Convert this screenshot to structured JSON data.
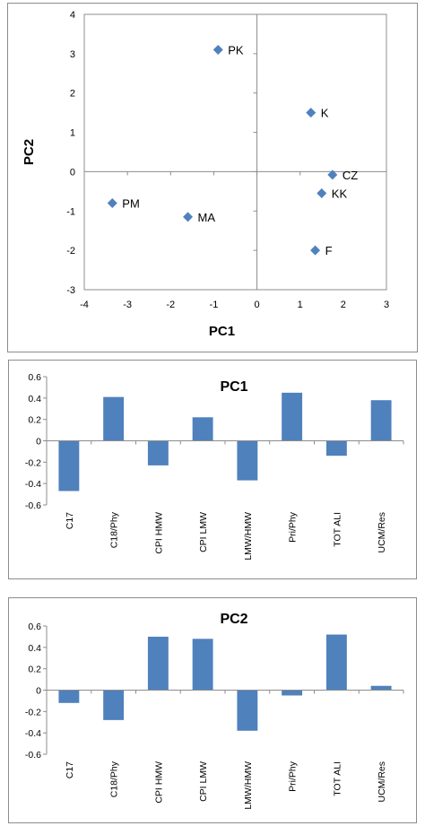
{
  "chart_data": [
    {
      "type": "scatter",
      "xlabel": "PC1",
      "ylabel": "PC2",
      "xlim": [
        -4,
        3
      ],
      "ylim": [
        -3,
        4
      ],
      "xticks": [
        "-4",
        "-3",
        "-2",
        "-1",
        "0",
        "1",
        "2",
        "3"
      ],
      "yticks": [
        "-3",
        "-2",
        "-1",
        "0",
        "1",
        "2",
        "3",
        "4"
      ],
      "marker_color": "#4f81bd",
      "points": [
        {
          "label": "PK",
          "x": -0.9,
          "y": 3.1
        },
        {
          "label": "K",
          "x": 1.25,
          "y": 1.5
        },
        {
          "label": "CZ",
          "x": 1.75,
          "y": -0.08
        },
        {
          "label": "KK",
          "x": 1.5,
          "y": -0.55
        },
        {
          "label": "PM",
          "x": -3.35,
          "y": -0.8
        },
        {
          "label": "MA",
          "x": -1.6,
          "y": -1.15
        },
        {
          "label": "F",
          "x": 1.35,
          "y": -2.0
        }
      ]
    },
    {
      "type": "bar",
      "title": "PC1",
      "ylim": [
        -0.6,
        0.6
      ],
      "yticks": [
        "0.6",
        "0.4",
        "0.2",
        "0",
        "-0.2",
        "-0.4",
        "-0.6"
      ],
      "bar_color": "#4f81bd",
      "categories": [
        "C17",
        "C18/Phy",
        "CPI HMW",
        "CPI LMW",
        "LMW/HMW",
        "Pri/Phy",
        "TOT ALI",
        "UCM/Res"
      ],
      "values": [
        -0.47,
        0.41,
        -0.23,
        0.22,
        -0.37,
        0.45,
        -0.14,
        0.38
      ]
    },
    {
      "type": "bar",
      "title": "PC2",
      "ylim": [
        -0.6,
        0.6
      ],
      "yticks": [
        "0.6",
        "0.4",
        "0.2",
        "0",
        "-0.2",
        "-0.4",
        "-0.6"
      ],
      "bar_color": "#4f81bd",
      "categories": [
        "C17",
        "C18/Phy",
        "CPI HMW",
        "CPI LMW",
        "LMW/HMW",
        "Pri/Phy",
        "TOT ALI",
        "UCM/Res"
      ],
      "values": [
        -0.12,
        -0.28,
        0.5,
        0.48,
        -0.38,
        -0.05,
        0.52,
        0.04
      ]
    }
  ]
}
